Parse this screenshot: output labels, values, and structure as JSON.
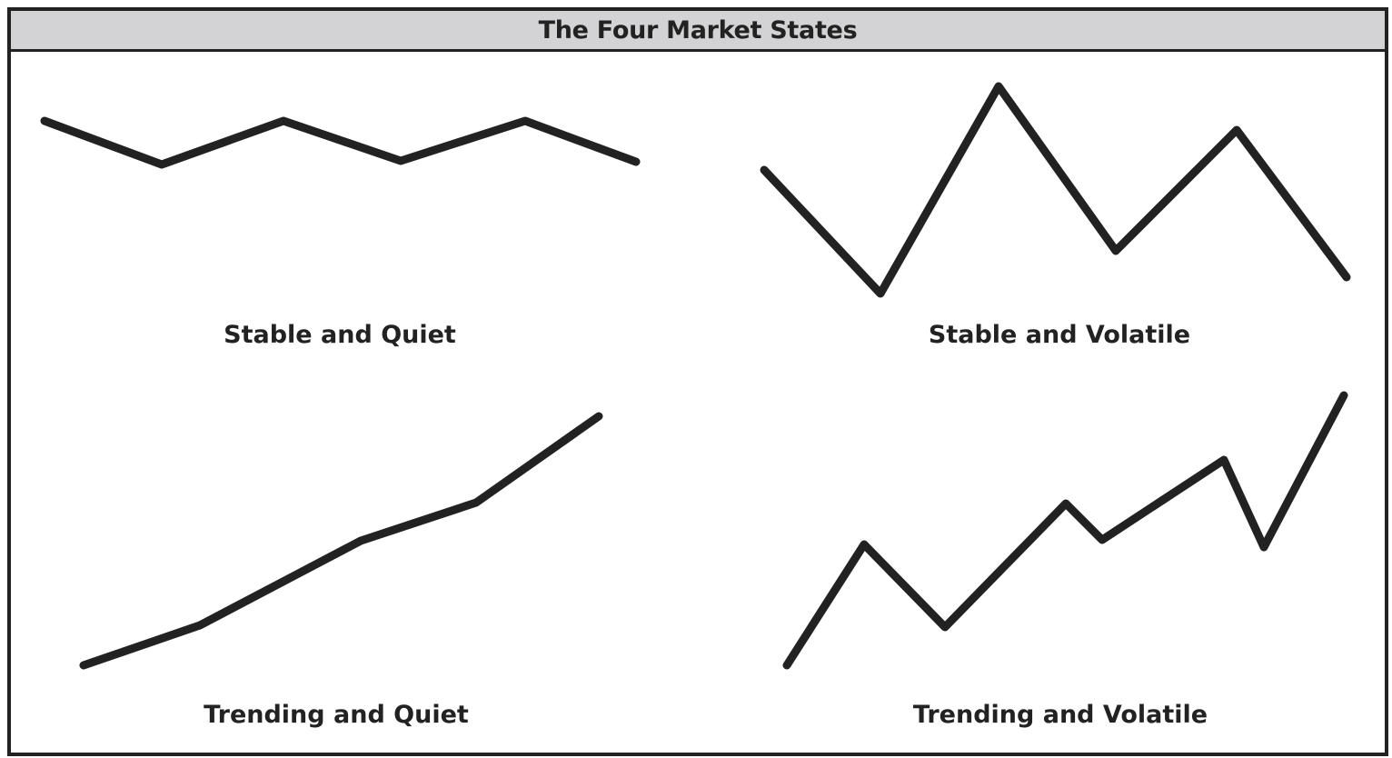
{
  "title": "The Four Market States",
  "colors": {
    "line": "#222222",
    "header_bg": "#d3d3d5",
    "background": "#ffffff"
  },
  "panels": [
    {
      "label": "Stable and Quiet"
    },
    {
      "label": "Stable and Volatile"
    },
    {
      "label": "Trending and Quiet"
    },
    {
      "label": "Trending and Volatile"
    }
  ]
}
